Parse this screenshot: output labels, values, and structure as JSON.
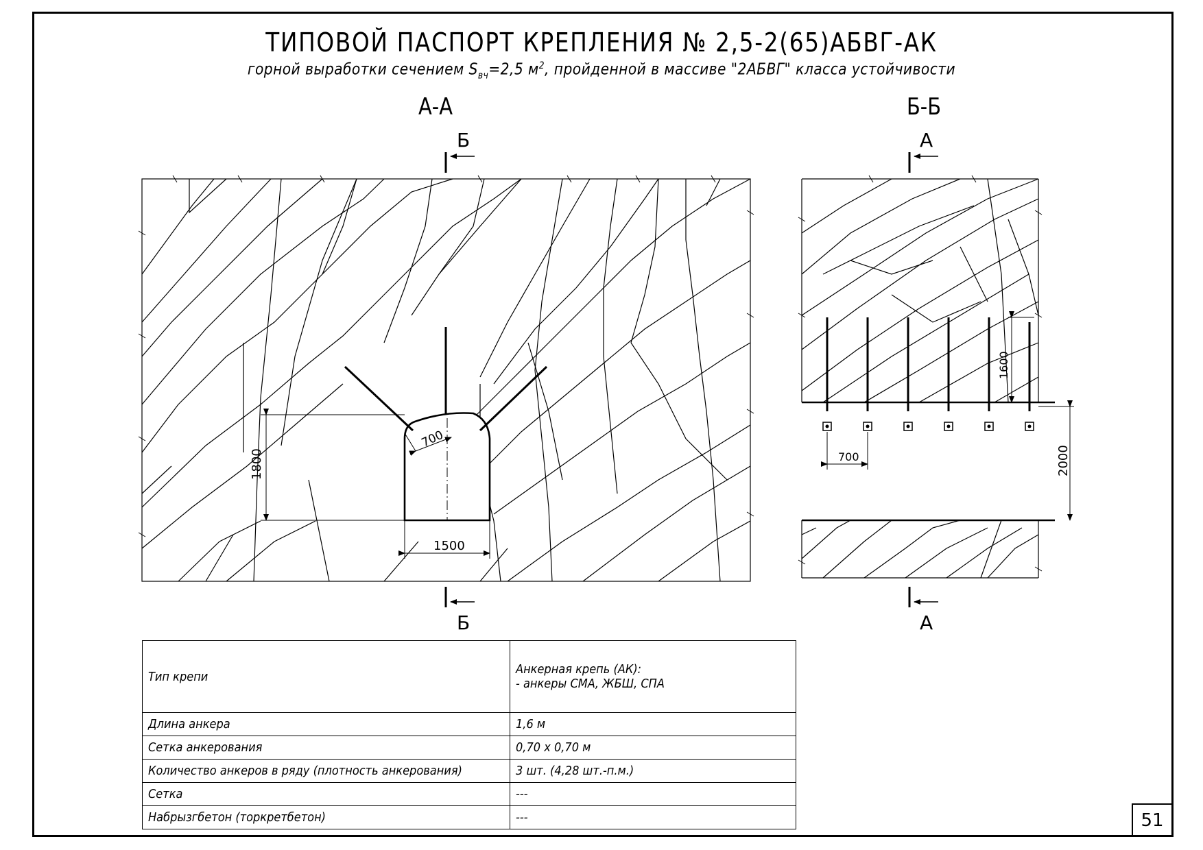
{
  "title": "ТИПОВОЙ ПАСПОРТ КРЕПЛЕНИЯ № 2,5-2(65)АБВГ-АК",
  "subtitle": {
    "part1": "горной выработки сечением S",
    "sub": "вч",
    "part2": "=2,5 м",
    "sup": "2",
    "part3": ", пройденной в массиве \"2АБВГ\" класса устойчивости"
  },
  "section_aa": {
    "label": "А-А",
    "cut_top": "Б",
    "cut_bottom": "Б",
    "dim_height": "1800",
    "dim_width": "1500",
    "dim_spacing": "700"
  },
  "section_bb": {
    "label": "Б-Б",
    "cut_top": "А",
    "cut_bottom": "А",
    "dim_anchor": "1600",
    "dim_spacing": "700",
    "dim_height": "2000"
  },
  "table": {
    "rows": [
      {
        "name": "Тип крепи",
        "value1": "Анкерная крепь (АК):",
        "value2": "- анкеры СМА, ЖБШ, СПА"
      },
      {
        "name": "Длина анкера",
        "value1": "1,6 м"
      },
      {
        "name": "Сетка анкерования",
        "value1": "0,70 х 0,70 м"
      },
      {
        "name": "Количество анкеров в ряду (плотность анкерования)",
        "value1": "3 шт. (4,28 шт.-п.м.)"
      },
      {
        "name": "Сетка",
        "value1": "---"
      },
      {
        "name": "Набрызгбетон (торкретбетон)",
        "value1": "---"
      }
    ]
  },
  "page_number": "51"
}
